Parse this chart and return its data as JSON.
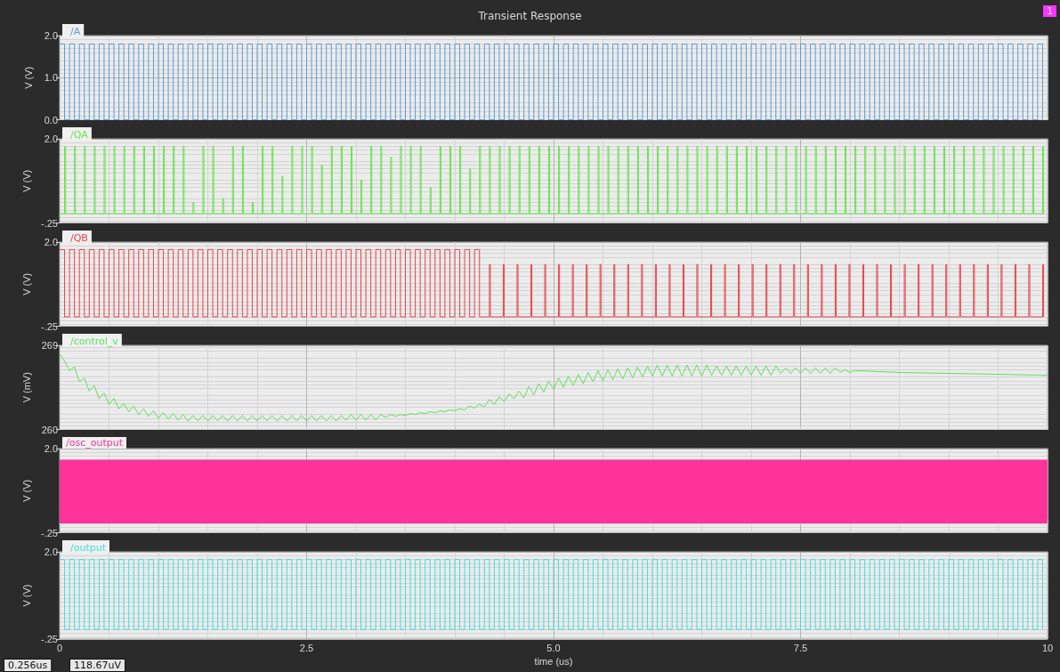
{
  "chart_data": [
    {
      "type": "step",
      "title": "Transient Response",
      "ylabel": "V (V)",
      "xlim": [
        0,
        10
      ],
      "xticks": [
        0,
        2.5,
        5,
        7.5,
        10
      ],
      "ylim": [
        0,
        2
      ],
      "yticks": [
        {
          "value": 0,
          "label": "0.0"
        },
        {
          "value": 1,
          "label": "1.0"
        },
        {
          "value": 2,
          "label": "2.0"
        }
      ],
      "grid": true,
      "legend": "top left",
      "tick_labels": "y",
      "annotations": [
        "1"
      ],
      "series": [
        {
          "name": "/A",
          "color": "#5b9bd5",
          "x": [
            0,
            0.05,
            0.1,
            0.15,
            0.2,
            0.25,
            0.3,
            0.35,
            0.4,
            0.45,
            0.5,
            0.55,
            0.6,
            0.65,
            0.7,
            0.75,
            0.8,
            0.85,
            0.9,
            0.95,
            1,
            1.05,
            1.1,
            1.15,
            1.2,
            1.25,
            1.3,
            1.35,
            1.4,
            1.45,
            1.5,
            1.55,
            1.6,
            1.65,
            1.7,
            1.75,
            1.8,
            1.85,
            1.9,
            1.95,
            2,
            2.05,
            2.1,
            2.15,
            2.2,
            2.25,
            2.3,
            2.35,
            2.4,
            2.45,
            2.5,
            2.55,
            2.6,
            2.65,
            2.7,
            2.75,
            2.8,
            2.85,
            2.9,
            2.95,
            3,
            3.05,
            3.1,
            3.15,
            3.2,
            3.25,
            3.3,
            3.35,
            3.4,
            3.45,
            3.5,
            3.55,
            3.6,
            3.65,
            3.7,
            3.75,
            3.8,
            3.85,
            3.9,
            3.95,
            4,
            4.05,
            4.1,
            4.15,
            4.2,
            4.25,
            4.3,
            4.35,
            4.4,
            4.45,
            4.5,
            4.55,
            4.6,
            4.65,
            4.7,
            4.75,
            4.8,
            4.85,
            4.9,
            4.95,
            5,
            5.05,
            5.1,
            5.15,
            5.2,
            5.25,
            5.3,
            5.35,
            5.4,
            5.45,
            5.5,
            5.55,
            5.6,
            5.65,
            5.7,
            5.75,
            5.8,
            5.85,
            5.9,
            5.95,
            6,
            6.05,
            6.1,
            6.15,
            6.2,
            6.25,
            6.3,
            6.35,
            6.4,
            6.45,
            6.5,
            6.55,
            6.6,
            6.65,
            6.7,
            6.75,
            6.8,
            6.85,
            6.9,
            6.95,
            7,
            7.05,
            7.1,
            7.15,
            7.2,
            7.25,
            7.3,
            7.35,
            7.4,
            7.45,
            7.5,
            7.55,
            7.6,
            7.65,
            7.7,
            7.75,
            7.8,
            7.85,
            7.9,
            7.95,
            8,
            8.05,
            8.1,
            8.15,
            8.2,
            8.25,
            8.3,
            8.35,
            8.4,
            8.45,
            8.5,
            8.55,
            8.6,
            8.65,
            8.7,
            8.75,
            8.8,
            8.85,
            8.9,
            8.95,
            9,
            9.05,
            9.1,
            9.15,
            9.2,
            9.25,
            9.3,
            9.35,
            9.4,
            9.45,
            9.5,
            9.55,
            9.6,
            9.65,
            9.7,
            9.75,
            9.8,
            9.85,
            9.9,
            9.95
          ],
          "values": [
            1.8,
            0,
            1.8,
            0,
            1.8,
            0,
            1.8,
            0,
            1.8,
            0,
            1.8,
            0,
            1.8,
            0,
            1.8,
            0,
            1.8,
            0,
            1.8,
            0,
            1.8,
            0,
            1.8,
            0,
            1.8,
            0,
            1.8,
            0,
            1.8,
            0,
            1.8,
            0,
            1.8,
            0,
            1.8,
            0,
            1.8,
            0,
            1.8,
            0,
            1.8,
            0,
            1.8,
            0,
            1.8,
            0,
            1.8,
            0,
            1.8,
            0,
            1.8,
            0,
            1.8,
            0,
            1.8,
            0,
            1.8,
            0,
            1.8,
            0,
            1.8,
            0,
            1.8,
            0,
            1.8,
            0,
            1.8,
            0,
            1.8,
            0,
            1.8,
            0,
            1.8,
            0,
            1.8,
            0,
            1.8,
            0,
            1.8,
            0,
            1.8,
            0,
            1.8,
            0,
            1.8,
            0,
            1.8,
            0,
            1.8,
            0,
            1.8,
            0,
            1.8,
            0,
            1.8,
            0,
            1.8,
            0,
            1.8,
            0,
            1.8,
            0,
            1.8,
            0,
            1.8,
            0,
            1.8,
            0,
            1.8,
            0,
            1.8,
            0,
            1.8,
            0,
            1.8,
            0,
            1.8,
            0,
            1.8,
            0,
            1.8,
            0,
            1.8,
            0,
            1.8,
            0,
            1.8,
            0,
            1.8,
            0,
            1.8,
            0,
            1.8,
            0,
            1.8,
            0,
            1.8,
            0,
            1.8,
            0,
            1.8,
            0,
            1.8,
            0,
            1.8,
            0,
            1.8,
            0,
            1.8,
            0,
            1.8,
            0,
            1.8,
            0,
            1.8,
            0,
            1.8,
            0,
            1.8,
            0,
            1.8,
            0,
            1.8,
            0,
            1.8,
            0,
            1.8,
            0,
            1.8,
            0,
            1.8,
            0,
            1.8,
            0,
            1.8,
            0,
            1.8,
            0,
            1.8,
            0,
            1.8,
            0,
            1.8,
            0,
            1.8,
            0,
            1.8,
            0,
            1.8,
            0,
            1.8,
            0,
            1.8,
            0,
            1.8,
            0,
            1.8,
            0,
            1.8,
            0
          ]
        }
      ]
    },
    {
      "type": "step",
      "ylabel": "V (V)",
      "xlim": [
        0,
        10
      ],
      "xticks": [
        0,
        2.5,
        5,
        7.5,
        10
      ],
      "ylim": [
        -0.25,
        2
      ],
      "yticks": [
        {
          "value": -0.25,
          "label": "-.25"
        },
        {
          "value": 2,
          "label": "2.0"
        }
      ],
      "grid": true,
      "legend": "top left",
      "tick_labels": "y",
      "series": [
        {
          "name": "/QA",
          "color": "#66e64d",
          "x": [
            0,
            0.05,
            0.06,
            0.15,
            0.16,
            0.25,
            0.26,
            0.35,
            0.36,
            0.45,
            0.46,
            0.55,
            0.56,
            0.65,
            0.66,
            0.75,
            0.76,
            0.85,
            0.86,
            0.95,
            0.96,
            1.05,
            1.06,
            1.15,
            1.16,
            1.25,
            1.26,
            1.35,
            1.36,
            1.45,
            1.46,
            1.55,
            1.56,
            1.65,
            1.66,
            1.75,
            1.76,
            1.85,
            1.86,
            1.95,
            1.96,
            2.05,
            2.06,
            2.15,
            2.16,
            2.25,
            2.26,
            2.35,
            2.36,
            2.45,
            2.46,
            2.55,
            2.56,
            2.65,
            2.66,
            2.75,
            2.76,
            2.85,
            2.86,
            2.95,
            2.96,
            3.05,
            3.06,
            3.15,
            3.16,
            3.25,
            3.26,
            3.35,
            3.36,
            3.45,
            3.46,
            3.55,
            3.56,
            3.65,
            3.66,
            3.75,
            3.76,
            3.85,
            3.86,
            3.95,
            3.96,
            4.05,
            4.06,
            4.15,
            4.16,
            4.25,
            4.26,
            4.35,
            4.36,
            4.45,
            4.46,
            4.55,
            4.56,
            4.65,
            4.66,
            4.75,
            4.76,
            4.85,
            4.86,
            4.95,
            4.96,
            5.05,
            5.06,
            5.15,
            5.16,
            5.25,
            5.26,
            5.35,
            5.36,
            5.45,
            5.46,
            5.55,
            5.56,
            5.65,
            5.66,
            5.75,
            5.76,
            5.85,
            5.86,
            5.95,
            5.96,
            6.05,
            6.06,
            6.15,
            6.16,
            6.25,
            6.26,
            6.35,
            6.36,
            6.45,
            6.46,
            6.55,
            6.56,
            6.65,
            6.66,
            6.75,
            6.76,
            6.85,
            6.86,
            6.95,
            6.96,
            7.05,
            7.06,
            7.15,
            7.16,
            7.25,
            7.26,
            7.35,
            7.36,
            7.45,
            7.46,
            7.55,
            7.56,
            7.65,
            7.66,
            7.75,
            7.76,
            7.85,
            7.86,
            7.95,
            7.96,
            8.05,
            8.06,
            8.15,
            8.16,
            8.25,
            8.26,
            8.35,
            8.36,
            8.45,
            8.46,
            8.55,
            8.56,
            8.65,
            8.66,
            8.75,
            8.76,
            8.85,
            8.86,
            8.95,
            8.96,
            9.05,
            9.06,
            9.15,
            9.16,
            9.25,
            9.26,
            9.35,
            9.36,
            9.45,
            9.46,
            9.55,
            9.56,
            9.65,
            9.66,
            9.75,
            9.76,
            9.85,
            9.86,
            9.95,
            9.96
          ],
          "values": [
            0,
            1.8,
            0,
            1.8,
            0,
            1.8,
            0,
            1.8,
            0,
            1.8,
            0,
            1.8,
            0,
            1.8,
            0,
            1.8,
            0,
            1.8,
            0,
            1.8,
            0,
            1.8,
            0,
            1.8,
            0,
            1.8,
            0,
            0.3,
            0,
            1.8,
            0,
            1.8,
            0,
            0.4,
            0,
            1.8,
            0,
            1.8,
            0,
            0.3,
            0,
            1.8,
            0,
            1.8,
            0,
            1,
            0,
            1.8,
            0,
            1.8,
            0,
            1.8,
            0,
            1.3,
            0,
            1.8,
            0,
            1.8,
            0,
            1.8,
            0,
            0.9,
            0,
            1.8,
            0,
            1.8,
            0,
            1.5,
            0,
            1.8,
            0,
            1.8,
            0,
            1.8,
            0,
            0.7,
            0,
            1.8,
            0,
            1.8,
            0,
            1.8,
            0,
            1.2,
            0,
            1.8,
            0,
            1.8,
            0,
            1.8,
            0,
            1.8,
            0,
            1.8,
            0,
            1.8,
            0,
            1.8,
            0,
            1.8,
            0,
            1.8,
            0,
            1.8,
            0,
            1.8,
            0,
            1.8,
            0,
            1.8,
            0,
            1.8,
            0,
            1.8,
            0,
            1.8,
            0,
            1.8,
            0,
            1.8,
            0,
            1.8,
            0,
            1.8,
            0,
            1.8,
            0,
            1.8,
            0,
            1.8,
            0,
            1.8,
            0,
            1.8,
            0,
            1.8,
            0,
            1.8,
            0,
            1.8,
            0,
            1.8,
            0,
            1.8,
            0,
            1.8,
            0,
            1.8,
            0,
            1.8,
            0,
            1.8,
            0,
            1.8,
            0,
            1.8,
            0,
            1.8,
            0,
            1.8,
            0,
            1.8,
            0,
            1.8,
            0,
            1.8,
            0,
            1.8,
            0,
            1.8,
            0,
            1.8,
            0,
            1.8,
            0,
            1.8,
            0,
            1.8,
            0,
            1.8,
            0,
            1.8,
            0,
            1.8,
            0,
            1.8,
            0,
            1.8,
            0,
            1.8,
            0,
            1.8,
            0,
            1.8,
            0,
            1.8,
            0,
            1.8,
            0,
            1.8,
            0
          ]
        }
      ]
    },
    {
      "type": "step",
      "ylabel": "V (V)",
      "xlim": [
        0,
        10
      ],
      "xticks": [
        0,
        2.5,
        5,
        7.5,
        10
      ],
      "ylim": [
        -0.25,
        2
      ],
      "yticks": [
        {
          "value": -0.25,
          "label": "-.25"
        },
        {
          "value": 2,
          "label": "2.0"
        }
      ],
      "grid": true,
      "legend": "top left",
      "tick_labels": "y",
      "series": [
        {
          "name": "/QB",
          "color": "#e8454a",
          "x": [
            0,
            0.05,
            0.1,
            0.15,
            0.2,
            0.25,
            0.3,
            0.35,
            0.4,
            0.45,
            0.5,
            0.55,
            0.6,
            0.65,
            0.7,
            0.75,
            0.8,
            0.85,
            0.9,
            0.95,
            1,
            1.05,
            1.1,
            1.15,
            1.2,
            1.25,
            1.3,
            1.35,
            1.4,
            1.45,
            1.5,
            1.55,
            1.6,
            1.65,
            1.7,
            1.75,
            1.8,
            1.85,
            1.9,
            1.95,
            2,
            2.05,
            2.1,
            2.15,
            2.2,
            2.25,
            2.3,
            2.35,
            2.4,
            2.45,
            2.5,
            2.55,
            2.6,
            2.65,
            2.7,
            2.75,
            2.8,
            2.85,
            2.9,
            2.95,
            3,
            3.05,
            3.1,
            3.15,
            3.2,
            3.25,
            3.3,
            3.35,
            3.4,
            3.45,
            3.5,
            3.55,
            3.6,
            3.65,
            3.7,
            3.75,
            3.8,
            3.85,
            3.9,
            3.95,
            4,
            4.05,
            4.1,
            4.15,
            4.2,
            4.25,
            4.35,
            4.36,
            4.49,
            4.5,
            4.63,
            4.64,
            4.77,
            4.78,
            4.91,
            4.92,
            5.05,
            5.06,
            5.19,
            5.2,
            5.33,
            5.34,
            5.47,
            5.48,
            5.61,
            5.62,
            5.75,
            5.76,
            5.89,
            5.9,
            6.03,
            6.04,
            6.17,
            6.18,
            6.31,
            6.32,
            6.45,
            6.46,
            6.59,
            6.6,
            6.73,
            6.74,
            6.87,
            6.88,
            7.01,
            7.02,
            7.15,
            7.16,
            7.29,
            7.3,
            7.43,
            7.44,
            7.57,
            7.58,
            7.71,
            7.72,
            7.85,
            7.86,
            7.99,
            8,
            8.13,
            8.14,
            8.27,
            8.28,
            8.41,
            8.42,
            8.55,
            8.56,
            8.69,
            8.7,
            8.83,
            8.84,
            8.97,
            8.98,
            9.11,
            9.12,
            9.25,
            9.26,
            9.39,
            9.4,
            9.53,
            9.54,
            9.67,
            9.68,
            9.81,
            9.82,
            9.95,
            9.96
          ],
          "values": [
            1.8,
            0,
            1.8,
            0,
            1.8,
            0,
            1.8,
            0,
            1.8,
            0,
            1.8,
            0,
            1.8,
            0,
            1.8,
            0,
            1.8,
            0,
            1.8,
            0,
            1.8,
            0,
            1.8,
            0,
            1.8,
            0,
            1.8,
            0,
            1.8,
            0,
            1.8,
            0,
            1.8,
            0,
            1.8,
            0,
            1.8,
            0,
            1.8,
            0,
            1.8,
            0,
            1.8,
            0,
            1.8,
            0,
            1.8,
            0,
            1.8,
            0,
            1.8,
            0,
            1.8,
            0,
            1.8,
            0,
            1.8,
            0,
            1.8,
            0,
            1.8,
            0,
            1.8,
            0,
            1.8,
            0,
            1.8,
            0,
            1.8,
            0,
            1.8,
            0,
            1.8,
            0,
            1.8,
            0,
            1.8,
            0,
            1.8,
            0,
            1.8,
            0,
            1.8,
            0,
            1.8,
            0,
            1.4,
            0,
            1.4,
            0,
            1.4,
            0,
            1.4,
            0,
            1.4,
            0,
            1.4,
            0,
            1.4,
            0,
            1.4,
            0,
            1.4,
            0,
            1.4,
            0,
            1.4,
            0,
            1.4,
            0,
            1.4,
            0,
            1.4,
            0,
            1.4,
            0,
            1.4,
            0,
            1.4,
            0,
            1.4,
            0,
            1.4,
            0,
            1.4,
            0,
            1.4,
            0,
            1.4,
            0,
            1.4,
            0,
            1.4,
            0,
            1.4,
            0,
            1.4,
            0,
            1.4,
            0,
            1.4,
            0,
            1.4,
            0,
            1.4,
            0,
            1.4,
            0,
            1.4,
            0,
            1.4,
            0,
            1.4,
            0,
            1.4,
            0,
            1.4,
            0,
            1.4,
            0,
            1.4,
            0,
            1.4,
            0,
            1.4,
            0,
            1.4,
            0
          ]
        }
      ]
    },
    {
      "type": "line",
      "ylabel": "V (mV)",
      "xlim": [
        0,
        10
      ],
      "xticks": [
        0,
        2.5,
        5,
        7.5,
        10
      ],
      "ylim": [
        260,
        269
      ],
      "yticks": [
        260,
        269
      ],
      "grid": true,
      "legend": "top left",
      "tick_labels": "y",
      "series": [
        {
          "name": "/control_v",
          "color": "#5ee05e",
          "x": [
            0,
            0.05,
            0.1,
            0.15,
            0.2,
            0.25,
            0.3,
            0.35,
            0.4,
            0.45,
            0.5,
            0.55,
            0.6,
            0.65,
            0.7,
            0.75,
            0.8,
            0.85,
            0.9,
            0.95,
            1,
            1.05,
            1.1,
            1.15,
            1.2,
            1.25,
            1.3,
            1.35,
            1.4,
            1.45,
            1.5,
            1.55,
            1.6,
            1.65,
            1.7,
            1.75,
            1.8,
            1.85,
            1.9,
            1.95,
            2,
            2.05,
            2.1,
            2.15,
            2.2,
            2.25,
            2.3,
            2.35,
            2.4,
            2.45,
            2.5,
            2.55,
            2.6,
            2.65,
            2.7,
            2.75,
            2.8,
            2.85,
            2.9,
            2.95,
            3,
            3.05,
            3.1,
            3.15,
            3.2,
            3.25,
            3.3,
            3.35,
            3.4,
            3.45,
            3.5,
            3.55,
            3.6,
            3.65,
            3.7,
            3.75,
            3.8,
            3.85,
            3.9,
            3.95,
            4,
            4.05,
            4.1,
            4.15,
            4.2,
            4.25,
            4.3,
            4.35,
            4.4,
            4.45,
            4.5,
            4.55,
            4.6,
            4.65,
            4.7,
            4.75,
            4.8,
            4.85,
            4.9,
            4.95,
            5,
            5.05,
            5.1,
            5.15,
            5.2,
            5.25,
            5.3,
            5.35,
            5.4,
            5.45,
            5.5,
            5.55,
            5.6,
            5.65,
            5.7,
            5.75,
            5.8,
            5.85,
            5.9,
            5.95,
            6,
            6.05,
            6.1,
            6.15,
            6.2,
            6.25,
            6.3,
            6.35,
            6.4,
            6.45,
            6.5,
            6.55,
            6.6,
            6.65,
            6.7,
            6.75,
            6.8,
            6.85,
            6.9,
            6.95,
            7,
            7.05,
            7.1,
            7.15,
            7.2,
            7.25,
            7.3,
            7.35,
            7.4,
            7.45,
            7.5,
            7.55,
            7.6,
            7.65,
            7.7,
            7.75,
            7.8,
            7.85,
            7.9,
            7.95,
            8,
            8.05,
            8.5,
            9,
            9.5,
            10
          ],
          "values": [
            268.1,
            267.3,
            266.3,
            266.7,
            265.1,
            265.5,
            264.1,
            264.7,
            263.3,
            263.9,
            262.7,
            263.3,
            262.2,
            262.8,
            261.9,
            262.5,
            261.6,
            262.2,
            261.4,
            262,
            261.2,
            261.8,
            261.1,
            261.7,
            261,
            261.6,
            260.9,
            261.5,
            260.9,
            261.5,
            260.9,
            261.5,
            260.9,
            261.5,
            260.9,
            261.5,
            260.9,
            261.5,
            260.9,
            261.5,
            260.9,
            261.5,
            260.9,
            261.5,
            260.9,
            261.5,
            260.9,
            261.5,
            260.9,
            261.5,
            260.9,
            261.5,
            260.9,
            261.5,
            260.9,
            261.5,
            260.9,
            261.5,
            261,
            261.6,
            261,
            261.6,
            261,
            261.6,
            261,
            261.6,
            261.3,
            261.6,
            261.4,
            261.6,
            261.5,
            261.7,
            261.6,
            261.8,
            261.7,
            261.9,
            261.8,
            262,
            261.9,
            262.1,
            262,
            262.2,
            262.1,
            262.5,
            262.3,
            262.7,
            262.4,
            263.2,
            262.7,
            263.5,
            263,
            263.8,
            263.3,
            264.1,
            263.4,
            264.6,
            263.7,
            264.9,
            264,
            265.2,
            264.3,
            265.5,
            264.5,
            265.7,
            264.7,
            265.9,
            264.9,
            266.1,
            265.1,
            266.3,
            265.2,
            266.4,
            265.3,
            266.5,
            265.4,
            266.6,
            265.5,
            266.7,
            265.6,
            266.8,
            265.7,
            266.9,
            265.7,
            266.9,
            265.7,
            266.9,
            265.7,
            266.9,
            265.7,
            266.9,
            265.7,
            266.9,
            265.8,
            266.8,
            265.8,
            266.8,
            265.8,
            266.8,
            265.8,
            266.8,
            265.8,
            266.8,
            265.8,
            266.8,
            265.8,
            266.8,
            266,
            266.6,
            266,
            266.6,
            266,
            266.6,
            266,
            266.6,
            266,
            266.6,
            266,
            266.6,
            266.1,
            266.4,
            266.1,
            266.3,
            266.1,
            266,
            265.9,
            265.8
          ]
        }
      ]
    },
    {
      "type": "step",
      "ylabel": "V (V)",
      "xlim": [
        0,
        10
      ],
      "xticks": [
        0,
        2.5,
        5,
        7.5,
        10
      ],
      "ylim": [
        -0.25,
        2
      ],
      "yticks": [
        {
          "value": -0.25,
          "label": "-.25"
        },
        {
          "value": 2,
          "label": "2.0"
        }
      ],
      "grid": true,
      "tick_labels": "y",
      "bands": [
        {
          "axis": "y",
          "from": 0,
          "to": 1.7,
          "label": "/osc_output",
          "color": "#ff3399"
        }
      ]
    },
    {
      "type": "step",
      "ylabel": "V (V)",
      "xlabel": "time (us)",
      "xlim": [
        0,
        10
      ],
      "xticks": [
        0,
        2.5,
        {
          "value": 5,
          "label": "5.0"
        },
        7.5,
        10
      ],
      "ylim": [
        -0.25,
        2
      ],
      "yticks": [
        {
          "value": -0.25,
          "label": "-.25"
        },
        {
          "value": 2,
          "label": "2.0"
        }
      ],
      "grid": true,
      "legend": "top left",
      "annotations": [
        "0.256us",
        "118.67uV"
      ],
      "series": [
        {
          "name": "/output",
          "color": "#40dede",
          "x": [
            0,
            0.05,
            0.1,
            0.15,
            0.2,
            0.25,
            0.3,
            0.35,
            0.4,
            0.45,
            0.5,
            0.55,
            0.6,
            0.65,
            0.7,
            0.75,
            0.8,
            0.85,
            0.9,
            0.95,
            1,
            1.05,
            1.1,
            1.15,
            1.2,
            1.25,
            1.3,
            1.35,
            1.4,
            1.45,
            1.5,
            1.55,
            1.6,
            1.65,
            1.7,
            1.75,
            1.8,
            1.85,
            1.9,
            1.95,
            2,
            2.05,
            2.1,
            2.15,
            2.2,
            2.25,
            2.3,
            2.35,
            2.4,
            2.45,
            2.5,
            2.55,
            2.6,
            2.65,
            2.7,
            2.75,
            2.8,
            2.85,
            2.9,
            2.95,
            3,
            3.05,
            3.1,
            3.15,
            3.2,
            3.25,
            3.3,
            3.35,
            3.4,
            3.45,
            3.5,
            3.55,
            3.6,
            3.65,
            3.7,
            3.75,
            3.8,
            3.85,
            3.9,
            3.95,
            4,
            4.05,
            4.1,
            4.15,
            4.2,
            4.25,
            4.3,
            4.35,
            4.4,
            4.45,
            4.5,
            4.55,
            4.6,
            4.65,
            4.7,
            4.75,
            4.8,
            4.85,
            4.9,
            4.95,
            5,
            5.05,
            5.1,
            5.15,
            5.2,
            5.25,
            5.3,
            5.35,
            5.4,
            5.45,
            5.5,
            5.55,
            5.6,
            5.65,
            5.7,
            5.75,
            5.8,
            5.85,
            5.9,
            5.95,
            6,
            6.05,
            6.1,
            6.15,
            6.2,
            6.25,
            6.3,
            6.35,
            6.4,
            6.45,
            6.5,
            6.55,
            6.6,
            6.65,
            6.7,
            6.75,
            6.8,
            6.85,
            6.9,
            6.95,
            7,
            7.05,
            7.1,
            7.15,
            7.2,
            7.25,
            7.3,
            7.35,
            7.4,
            7.45,
            7.5,
            7.55,
            7.6,
            7.65,
            7.7,
            7.75,
            7.8,
            7.85,
            7.9,
            7.95,
            8,
            8.05,
            8.1,
            8.15,
            8.2,
            8.25,
            8.3,
            8.35,
            8.4,
            8.45,
            8.5,
            8.55,
            8.6,
            8.65,
            8.7,
            8.75,
            8.8,
            8.85,
            8.9,
            8.95,
            9,
            9.05,
            9.1,
            9.15,
            9.2,
            9.25,
            9.3,
            9.35,
            9.4,
            9.45,
            9.5,
            9.55,
            9.6,
            9.65,
            9.7,
            9.75,
            9.8,
            9.85,
            9.9,
            9.95
          ],
          "values": [
            1.8,
            0,
            1.8,
            0,
            1.8,
            0,
            1.8,
            0,
            1.8,
            0,
            1.8,
            0,
            1.8,
            0,
            1.8,
            0,
            1.8,
            0,
            1.8,
            0,
            1.8,
            0,
            1.8,
            0,
            1.8,
            0,
            1.8,
            0,
            1.8,
            0,
            1.8,
            0,
            1.8,
            0,
            1.8,
            0,
            1.8,
            0,
            1.8,
            0,
            1.8,
            0,
            1.8,
            0,
            1.8,
            0,
            1.8,
            0,
            1.8,
            0,
            1.8,
            0,
            1.8,
            0,
            1.8,
            0,
            1.8,
            0,
            1.8,
            0,
            1.8,
            0,
            1.8,
            0,
            1.8,
            0,
            1.8,
            0,
            1.8,
            0,
            1.8,
            0,
            1.8,
            0,
            1.8,
            0,
            1.8,
            0,
            1.8,
            0,
            1.8,
            0,
            1.8,
            0,
            1.8,
            0,
            1.8,
            0,
            1.8,
            0,
            1.8,
            0,
            1.8,
            0,
            1.8,
            0,
            1.8,
            0,
            1.8,
            0,
            1.8,
            0,
            1.8,
            0,
            1.8,
            0,
            1.8,
            0,
            1.8,
            0,
            1.8,
            0,
            1.8,
            0,
            1.8,
            0,
            1.8,
            0,
            1.8,
            0,
            1.8,
            0,
            1.8,
            0,
            1.8,
            0,
            1.8,
            0,
            1.8,
            0,
            1.8,
            0,
            1.8,
            0,
            1.8,
            0,
            1.8,
            0,
            1.8,
            0,
            1.8,
            0,
            1.8,
            0,
            1.8,
            0,
            1.8,
            0,
            1.8,
            0,
            1.8,
            0,
            1.8,
            0,
            1.8,
            0,
            1.8,
            0,
            1.8,
            0,
            1.8,
            0,
            1.8,
            0,
            1.8,
            0,
            1.8,
            0,
            1.8,
            0,
            1.8,
            0,
            1.8,
            0,
            1.8,
            0,
            1.8,
            0,
            1.8,
            0,
            1.8,
            0,
            1.8,
            0,
            1.8,
            0,
            1.8,
            0,
            1.8,
            0,
            1.8,
            0,
            1.8,
            0,
            1.8,
            0,
            1.8,
            0,
            1.8,
            0
          ]
        }
      ]
    }
  ]
}
